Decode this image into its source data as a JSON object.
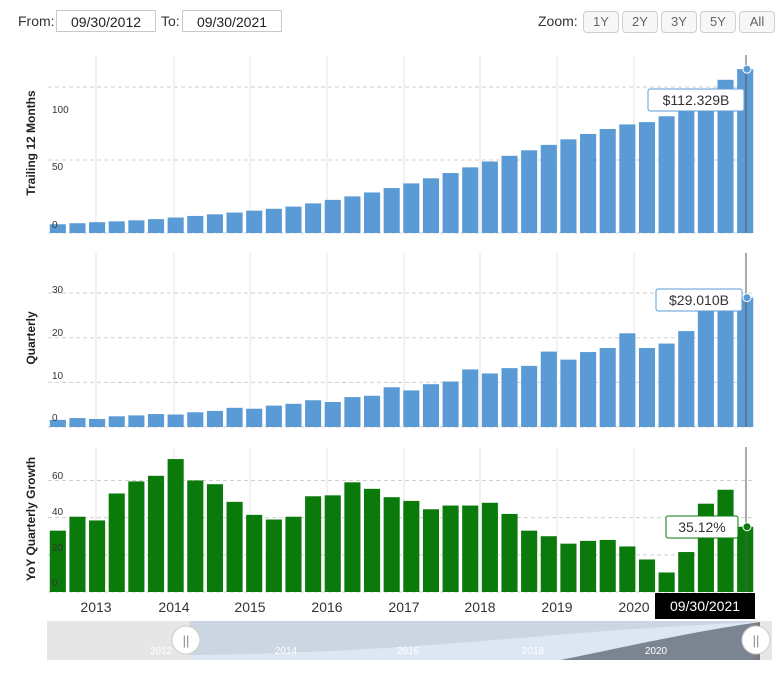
{
  "controls": {
    "from_label": "From:",
    "from_value": "09/30/2012",
    "to_label": "To:",
    "to_value": "09/30/2021",
    "zoom_label": "Zoom:",
    "zoom_options": [
      "1Y",
      "2Y",
      "3Y",
      "5Y",
      "All"
    ]
  },
  "colors": {
    "blue": "#5b9bd5",
    "green": "#0a7a0a",
    "grid": "#e6e6e6"
  },
  "crosshair_date": "09/30/2021",
  "navigator": {
    "year_labels": [
      "2012",
      "2014",
      "2016",
      "2018",
      "2020"
    ],
    "handle_glyph": "||"
  },
  "chart_data": [
    {
      "type": "bar",
      "ylabel": "Trailing 12 Months",
      "yticks": [
        0,
        50,
        100
      ],
      "ylim": [
        0,
        122
      ],
      "xticks": [
        "2013",
        "2014",
        "2015",
        "2016",
        "2017",
        "2018",
        "2019",
        "2020"
      ],
      "tooltip": "$112.329B",
      "values": [
        6.0,
        6.7,
        7.4,
        8.0,
        8.7,
        9.5,
        10.6,
        11.7,
        12.8,
        14.0,
        15.3,
        16.6,
        18.1,
        20.3,
        22.7,
        25.1,
        27.8,
        30.8,
        34.0,
        37.5,
        41.1,
        45.0,
        49.0,
        52.9,
        56.7,
        60.4,
        64.2,
        67.9,
        71.3,
        74.4,
        76.0,
        80.0,
        88.0,
        97.0,
        105.0,
        112.3
      ]
    },
    {
      "type": "bar",
      "ylabel": "Quarterly",
      "yticks": [
        0,
        10,
        20,
        30
      ],
      "ylim": [
        0,
        39
      ],
      "xticks": [
        "2013",
        "2014",
        "2015",
        "2016",
        "2017",
        "2018",
        "2019",
        "2020"
      ],
      "tooltip": "$29.010B",
      "values": [
        1.6,
        2.0,
        1.8,
        2.4,
        2.6,
        2.9,
        2.8,
        3.3,
        3.6,
        4.3,
        4.1,
        4.8,
        5.2,
        6.0,
        5.6,
        6.7,
        7.0,
        8.9,
        8.2,
        9.6,
        10.2,
        12.9,
        12.0,
        13.2,
        13.7,
        16.9,
        15.1,
        16.8,
        17.7,
        21.0,
        17.7,
        18.7,
        21.5,
        28.1,
        26.2,
        29.0
      ]
    },
    {
      "type": "bar",
      "ylabel": "YoY Quarterly Growth",
      "yticks": [
        0,
        20,
        40,
        60
      ],
      "ylim": [
        0,
        78
      ],
      "xticks": [
        "2013",
        "2014",
        "2015",
        "2016",
        "2017",
        "2018",
        "2019",
        "2020"
      ],
      "tooltip": "35.12%",
      "values": [
        33.0,
        40.5,
        38.5,
        53.0,
        59.5,
        62.5,
        71.5,
        60.0,
        58.0,
        48.5,
        41.5,
        39.0,
        40.5,
        51.5,
        52.0,
        59.0,
        55.5,
        51.0,
        49.0,
        44.5,
        46.5,
        46.5,
        48.0,
        42.0,
        33.0,
        30.0,
        26.0,
        27.5,
        28.0,
        24.5,
        17.5,
        10.5,
        21.5,
        47.5,
        55.0,
        35.1
      ]
    }
  ]
}
